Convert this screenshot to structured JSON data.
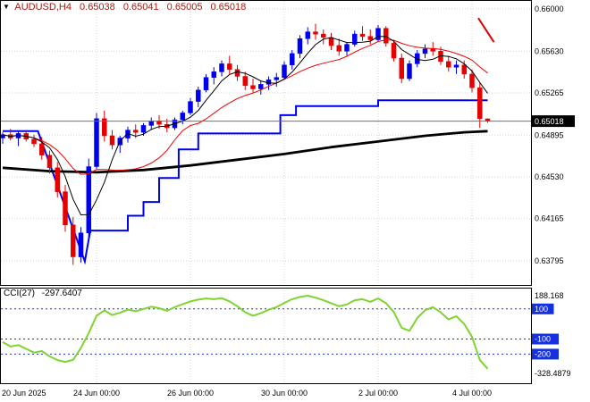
{
  "window": {
    "header": {
      "dropdown_icon": "▼",
      "symbol_period": "AUDUSD,H4",
      "open": "0.65038",
      "high": "0.65041",
      "low": "0.65005",
      "close": "0.65018"
    }
  },
  "colors": {
    "background": "#FFFFFF",
    "border": "#000000",
    "grid": "#D6D6D6",
    "bull": "#0000F0",
    "bear": "#E60000",
    "ma_fast": "#000000",
    "ma_mid": "#F00000",
    "ma_slow": "#000000",
    "step_line": "#0000F0",
    "bid_line": "#707070",
    "bid_badge_bg": "#000000",
    "bid_badge_text": "#FFFFFF",
    "header_text": "#9E1B12",
    "cci_line": "#7FD42E",
    "cci_level": "#1430E0",
    "cci_badge_bg": "#1430E0",
    "cci_badge_text": "#FFFFFF",
    "axis_text": "#000000",
    "trend_stub": "#E00000"
  },
  "chart_data": {
    "type": "candlestick",
    "symbol": "AUDUSD",
    "timeframe": "H4",
    "bid": 0.65018,
    "price_axis": [
      0.66,
      0.6563,
      0.65265,
      0.64895,
      0.6453,
      0.64165,
      0.63795
    ],
    "time_axis": [
      {
        "label": "20 Jun 2025",
        "index": 0
      },
      {
        "label": "24 Jun 00:00",
        "index": 12
      },
      {
        "label": "26 Jun 00:00",
        "index": 24
      },
      {
        "label": "30 Jun 00:00",
        "index": 36
      },
      {
        "label": "2 Jul 00:00",
        "index": 48
      },
      {
        "label": "4 Jul 00:00",
        "index": 60
      }
    ],
    "candles": [
      [
        0.6487,
        0.6492,
        0.6482,
        0.649
      ],
      [
        0.649,
        0.6495,
        0.6485,
        0.6487
      ],
      [
        0.6487,
        0.6493,
        0.648,
        0.6491
      ],
      [
        0.6491,
        0.6494,
        0.6484,
        0.6486
      ],
      [
        0.6486,
        0.649,
        0.6479,
        0.6482
      ],
      [
        0.6482,
        0.6488,
        0.6468,
        0.6472
      ],
      [
        0.6472,
        0.6476,
        0.6456,
        0.6461
      ],
      [
        0.6461,
        0.6466,
        0.6435,
        0.644
      ],
      [
        0.644,
        0.6446,
        0.6405,
        0.6411
      ],
      [
        0.6411,
        0.6418,
        0.6376,
        0.6383
      ],
      [
        0.6383,
        0.6409,
        0.6378,
        0.6404
      ],
      [
        0.6404,
        0.6469,
        0.6399,
        0.6462
      ],
      [
        0.6462,
        0.6509,
        0.646,
        0.6504
      ],
      [
        0.6504,
        0.6511,
        0.6484,
        0.6489
      ],
      [
        0.6489,
        0.6494,
        0.6477,
        0.6481
      ],
      [
        0.6481,
        0.6489,
        0.6474,
        0.6487
      ],
      [
        0.6487,
        0.6497,
        0.6483,
        0.6494
      ],
      [
        0.6494,
        0.6499,
        0.6487,
        0.6492
      ],
      [
        0.6492,
        0.65,
        0.6489,
        0.6498
      ],
      [
        0.6498,
        0.6505,
        0.6494,
        0.6502
      ],
      [
        0.6502,
        0.6507,
        0.6495,
        0.6499
      ],
      [
        0.6499,
        0.6504,
        0.6492,
        0.6496
      ],
      [
        0.6496,
        0.6505,
        0.6494,
        0.6503
      ],
      [
        0.6503,
        0.6511,
        0.6499,
        0.6509
      ],
      [
        0.6509,
        0.6522,
        0.6507,
        0.6519
      ],
      [
        0.6519,
        0.6532,
        0.6514,
        0.6529
      ],
      [
        0.6529,
        0.6543,
        0.6527,
        0.654
      ],
      [
        0.654,
        0.6549,
        0.6534,
        0.6545
      ],
      [
        0.6545,
        0.6555,
        0.6541,
        0.6552
      ],
      [
        0.6552,
        0.6559,
        0.6543,
        0.6547
      ],
      [
        0.6547,
        0.6551,
        0.6537,
        0.6541
      ],
      [
        0.6541,
        0.6545,
        0.6529,
        0.6533
      ],
      [
        0.6533,
        0.6539,
        0.6527,
        0.653
      ],
      [
        0.653,
        0.6537,
        0.6525,
        0.6534
      ],
      [
        0.6534,
        0.6541,
        0.6529,
        0.6538
      ],
      [
        0.6538,
        0.6544,
        0.6532,
        0.654
      ],
      [
        0.654,
        0.6554,
        0.6538,
        0.6551
      ],
      [
        0.6551,
        0.6564,
        0.6547,
        0.6561
      ],
      [
        0.6561,
        0.6577,
        0.6557,
        0.6574
      ],
      [
        0.6574,
        0.6584,
        0.6569,
        0.658
      ],
      [
        0.658,
        0.6587,
        0.6573,
        0.6578
      ],
      [
        0.6578,
        0.6582,
        0.6569,
        0.6575
      ],
      [
        0.6575,
        0.6579,
        0.6564,
        0.6568
      ],
      [
        0.6568,
        0.6574,
        0.6559,
        0.6563
      ],
      [
        0.6563,
        0.6571,
        0.6559,
        0.6569
      ],
      [
        0.6569,
        0.6581,
        0.6567,
        0.6578
      ],
      [
        0.6578,
        0.6585,
        0.6572,
        0.6576
      ],
      [
        0.6576,
        0.6582,
        0.6569,
        0.6573
      ],
      [
        0.6573,
        0.6586,
        0.6571,
        0.6583
      ],
      [
        0.6583,
        0.6585,
        0.6567,
        0.657
      ],
      [
        0.657,
        0.6573,
        0.6554,
        0.6557
      ],
      [
        0.6557,
        0.6561,
        0.6535,
        0.6539
      ],
      [
        0.6539,
        0.6555,
        0.6537,
        0.6552
      ],
      [
        0.6552,
        0.6564,
        0.6549,
        0.6561
      ],
      [
        0.6561,
        0.6569,
        0.6557,
        0.6565
      ],
      [
        0.6565,
        0.6571,
        0.6559,
        0.6563
      ],
      [
        0.6563,
        0.6567,
        0.6551,
        0.6554
      ],
      [
        0.6554,
        0.6559,
        0.6545,
        0.6549
      ],
      [
        0.6549,
        0.6555,
        0.6543,
        0.6551
      ],
      [
        0.6551,
        0.6555,
        0.6539,
        0.6543
      ],
      [
        0.6543,
        0.6547,
        0.6527,
        0.6531
      ],
      [
        0.6531,
        0.6535,
        0.6496,
        0.6504
      ],
      [
        0.65038,
        0.65041,
        0.65005,
        0.65018
      ]
    ],
    "ma_fast_period": 5,
    "ma_mid_period": 13,
    "slow_ma_points": [
      [
        0,
        0.6461
      ],
      [
        6,
        0.6458
      ],
      [
        12,
        0.6457
      ],
      [
        18,
        0.6459
      ],
      [
        24,
        0.6463
      ],
      [
        30,
        0.6468
      ],
      [
        36,
        0.6473
      ],
      [
        42,
        0.6479
      ],
      [
        48,
        0.6484
      ],
      [
        54,
        0.6489
      ],
      [
        59,
        0.6492
      ],
      [
        62,
        0.6493
      ]
    ],
    "step_line_points": [
      [
        0,
        0.6493
      ],
      [
        4.5,
        0.6493
      ],
      [
        10.5,
        0.6379
      ],
      [
        11.2,
        0.6406
      ],
      [
        16,
        0.6406
      ],
      [
        16,
        0.6419
      ],
      [
        18,
        0.6419
      ],
      [
        18,
        0.6431
      ],
      [
        20,
        0.6431
      ],
      [
        20,
        0.6452
      ],
      [
        22.5,
        0.6452
      ],
      [
        22.5,
        0.6477
      ],
      [
        25,
        0.6477
      ],
      [
        25,
        0.6491
      ],
      [
        35.5,
        0.6491
      ],
      [
        35.5,
        0.6507
      ],
      [
        37.5,
        0.6507
      ],
      [
        37.5,
        0.6515
      ],
      [
        48,
        0.6515
      ],
      [
        48,
        0.652
      ],
      [
        62,
        0.652
      ]
    ],
    "trend_stub": {
      "points": [
        [
          60.8,
          0.6592
        ],
        [
          62.8,
          0.6571
        ]
      ]
    },
    "cci": {
      "label": "CCI(27)",
      "value": "-297.6407",
      "scale_max": 188.168,
      "scale_min": -328.4879,
      "scale_max_label": "188.168",
      "scale_min_label": "-328.4879",
      "levels": [
        100,
        -100,
        -200
      ],
      "values": [
        -120,
        -150,
        -140,
        -165,
        -190,
        -180,
        -215,
        -240,
        -252,
        -238,
        -160,
        -60,
        55,
        90,
        60,
        75,
        95,
        85,
        100,
        115,
        105,
        88,
        112,
        132,
        150,
        162,
        170,
        165,
        172,
        150,
        118,
        78,
        55,
        72,
        95,
        112,
        140,
        165,
        180,
        188.17,
        175,
        158,
        138,
        118,
        130,
        158,
        165,
        148,
        170,
        138,
        80,
        -25,
        -45,
        40,
        92,
        112,
        78,
        30,
        52,
        0,
        -85,
        -240,
        -297.64
      ]
    }
  }
}
